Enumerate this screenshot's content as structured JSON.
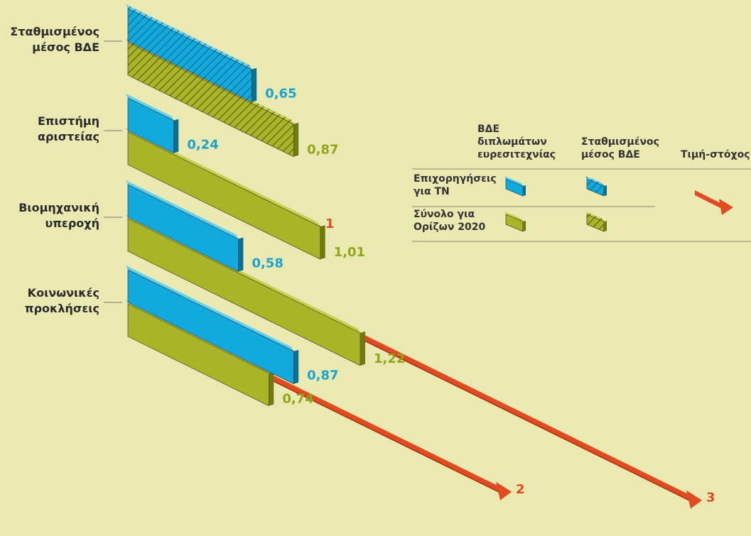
{
  "chart_data": {
    "type": "bar",
    "orientation": "horizontal-3d",
    "categories": [
      [
        "Σταθμισμένος",
        "μέσος ΒΔΕ"
      ],
      [
        "Επιστήμη",
        "αριστείας"
      ],
      [
        "Βιομηχανική",
        "υπεροχή"
      ],
      [
        "Κοινωνικές",
        "προκλήσεις"
      ]
    ],
    "series": [
      {
        "name": "Επιχορηγήσεις για ΤΝ",
        "values": [
          0.65,
          0.24,
          0.58,
          0.87
        ]
      },
      {
        "name": "Σύνολο για Ορίζων 2020",
        "values": [
          0.87,
          1.01,
          1.22,
          0.74
        ]
      }
    ],
    "value_labels": {
      "blue": [
        "0,65",
        "0,24",
        "0,58",
        "0,87"
      ],
      "green": [
        "0,87",
        "1,01",
        "1,22",
        "0,74"
      ]
    },
    "targets": [
      null,
      1,
      3,
      2
    ],
    "target_labels": [
      "",
      "1",
      "3",
      "2"
    ],
    "first_category_hatched": true,
    "colors": {
      "blue_top": "#5dd0f3",
      "blue_front": "#12aadd",
      "blue_side": "#0b6f94",
      "green_top": "#c5d04c",
      "green_front": "#a9b526",
      "green_side": "#6f7a11",
      "target": "#e24a1f",
      "target_dark": "#a8300f",
      "background": "#ebe9b2"
    },
    "legend": {
      "column_headers": [
        [
          "ΒΔΕ",
          "διπλωμάτων",
          "ευρεσιτεχνίας"
        ],
        [
          "Σταθμισμένος",
          "μέσος ΒΔΕ"
        ],
        [
          "Τιμή-στόχος"
        ]
      ],
      "rows": [
        [
          "Επιχορηγήσεις",
          "για ΤΝ"
        ],
        [
          "Σύνολο για",
          "Ορίζων 2020"
        ]
      ]
    }
  }
}
